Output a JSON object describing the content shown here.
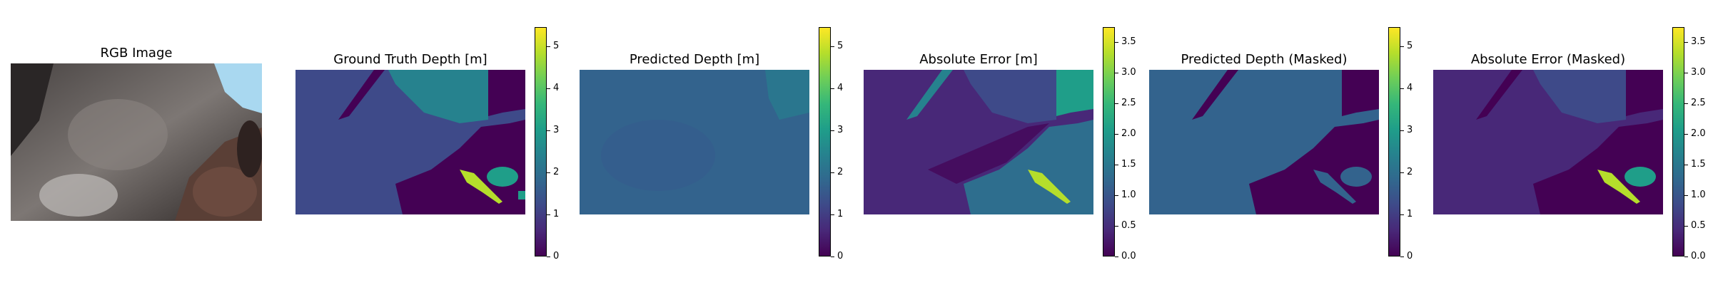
{
  "figure": {
    "panels": [
      {
        "id": "rgb",
        "title": "RGB Image"
      },
      {
        "id": "gt",
        "title": "Ground Truth Depth [m]"
      },
      {
        "id": "pred",
        "title": "Predicted Depth [m]"
      },
      {
        "id": "err",
        "title": "Absolute Error [m]"
      },
      {
        "id": "predm",
        "title": "Predicted Depth (Masked)"
      },
      {
        "id": "errm",
        "title": "Absolute Error (Masked)"
      }
    ],
    "colormap": "viridis",
    "colors": {
      "viridis": [
        "#440154",
        "#482878",
        "#3e4a89",
        "#31688e",
        "#26828e",
        "#1f9e89",
        "#35b779",
        "#6ece58",
        "#b5de2b",
        "#fde725"
      ],
      "rgb_dark": "#2e2a28",
      "rgb_mid": "#6f6a68",
      "rgb_light": "#b7b3b0",
      "rgb_sky": "#a9d8f0",
      "rgb_brown": "#5a3f36"
    }
  },
  "chart_data": [
    {
      "type": "heatmap",
      "title": "RGB Image"
    },
    {
      "type": "heatmap",
      "title": "Ground Truth Depth [m]",
      "colorbar": {
        "ticks": [
          "0",
          "1",
          "2",
          "3",
          "4",
          "5"
        ],
        "range": [
          0,
          5.45
        ]
      }
    },
    {
      "type": "heatmap",
      "title": "Predicted Depth [m]",
      "colorbar": {
        "ticks": [
          "0",
          "1",
          "2",
          "3",
          "4",
          "5"
        ],
        "range": [
          0,
          5.45
        ]
      }
    },
    {
      "type": "heatmap",
      "title": "Absolute Error [m]",
      "colorbar": {
        "ticks": [
          "0.0",
          "0.5",
          "1.0",
          "1.5",
          "2.0",
          "2.5",
          "3.0",
          "3.5"
        ],
        "range": [
          0,
          3.75
        ]
      }
    },
    {
      "type": "heatmap",
      "title": "Predicted Depth (Masked)",
      "colorbar": {
        "ticks": [
          "0",
          "1",
          "2",
          "3",
          "4",
          "5"
        ],
        "range": [
          0,
          5.45
        ]
      }
    },
    {
      "type": "heatmap",
      "title": "Absolute Error (Masked)",
      "colorbar": {
        "ticks": [
          "0.0",
          "0.5",
          "1.0",
          "1.5",
          "2.0",
          "2.5",
          "3.0",
          "3.5"
        ],
        "range": [
          0,
          3.75
        ]
      }
    }
  ]
}
